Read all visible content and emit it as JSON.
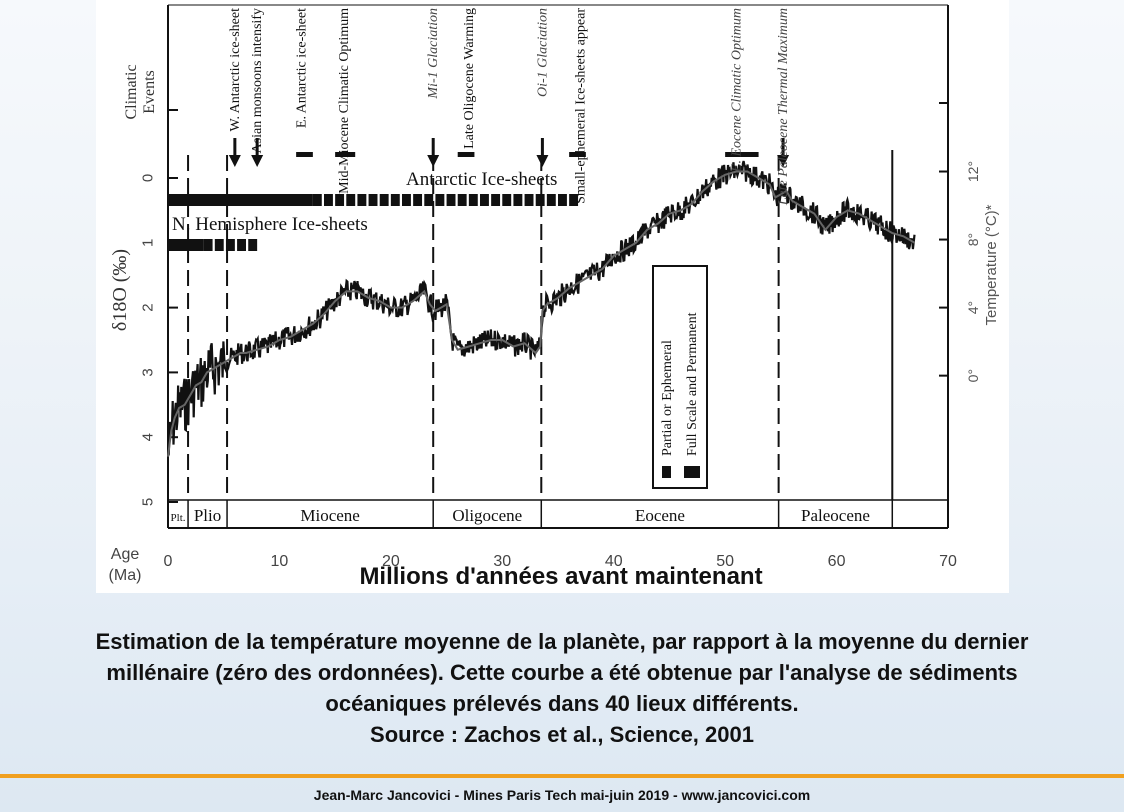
{
  "chart_data": {
    "type": "line",
    "title": "",
    "xlabel": "Millions d'années avant maintenant",
    "xlabel_axis": "Age",
    "xlabel_axis_unit": "(Ma)",
    "ylabel_left": "δ18O (‰)",
    "ylabel_left_super": "18",
    "ylabel_right": "Temperature (°C)*",
    "events_label": [
      "Climatic",
      "Events"
    ],
    "xlim": [
      0,
      70
    ],
    "ylim": [
      5,
      -1
    ],
    "x_ticks": [
      "0",
      "10",
      "20",
      "30",
      "40",
      "50",
      "60",
      "70"
    ],
    "y_ticks": [
      "0",
      "1",
      "2",
      "3",
      "4",
      "5"
    ],
    "y_tick_values": [
      0,
      1,
      2,
      3,
      4,
      5
    ],
    "right_ticks": [
      {
        "label": "12°",
        "d18o": -0.1
      },
      {
        "label": "8°",
        "d18o": 0.95
      },
      {
        "label": "4°",
        "d18o": 2.0
      },
      {
        "label": "0°",
        "d18o": 3.05
      }
    ],
    "series": [
      {
        "x": [
          0,
          0.3,
          0.6,
          1,
          1.5,
          2,
          2.5,
          3,
          3.5,
          4,
          4.5,
          5,
          5.5,
          6,
          6.5,
          7,
          8,
          9,
          10,
          11,
          12,
          13,
          14,
          15,
          16,
          17,
          18,
          19,
          20,
          21,
          22,
          23,
          23.5,
          24,
          24.5,
          25,
          25.5,
          26,
          27,
          28,
          29,
          30,
          31,
          32,
          33,
          33.4,
          33.6,
          34,
          35,
          36,
          37,
          38,
          39,
          40,
          41,
          42,
          43,
          44,
          45,
          46,
          47,
          48,
          49,
          50,
          51,
          52,
          53,
          54,
          54.5,
          55,
          55.5,
          56,
          57,
          58,
          59,
          60,
          61,
          62,
          63,
          64,
          65,
          66,
          67
        ],
        "values": [
          4.3,
          3.9,
          3.7,
          3.55,
          3.5,
          3.35,
          3.2,
          3.15,
          3.0,
          2.95,
          2.9,
          2.85,
          2.8,
          2.75,
          2.7,
          2.7,
          2.65,
          2.6,
          2.5,
          2.45,
          2.35,
          2.25,
          2.1,
          1.9,
          1.75,
          1.75,
          1.85,
          1.9,
          2.0,
          2.0,
          1.9,
          1.75,
          1.95,
          2.05,
          2.0,
          1.95,
          2.5,
          2.65,
          2.6,
          2.55,
          2.5,
          2.5,
          2.6,
          2.55,
          2.7,
          2.6,
          2.05,
          1.95,
          1.85,
          1.7,
          1.6,
          1.5,
          1.4,
          1.2,
          1.1,
          1.0,
          0.8,
          0.7,
          0.55,
          0.5,
          0.4,
          0.2,
          0.05,
          -0.05,
          -0.1,
          -0.1,
          0.0,
          0.1,
          0.3,
          0.25,
          0.2,
          0.35,
          0.45,
          0.55,
          0.8,
          0.6,
          0.5,
          0.55,
          0.65,
          0.75,
          0.85,
          0.9,
          1.0
        ]
      }
    ],
    "vlines_dashed": [
      1.8,
      5.3,
      23.8,
      33.5,
      54.8
    ],
    "vlines_solid": [
      65
    ],
    "epochs": [
      {
        "name": "Plt.",
        "start": 0,
        "end": 1.8
      },
      {
        "name": "Plio",
        "start": 1.8,
        "end": 5.3
      },
      {
        "name": "Miocene",
        "start": 5.3,
        "end": 23.8
      },
      {
        "name": "Oligocene",
        "start": 23.8,
        "end": 33.5
      },
      {
        "name": "Eocene",
        "start": 33.5,
        "end": 54.8
      },
      {
        "name": "Paleocene",
        "start": 54.8,
        "end": 65
      }
    ],
    "ice_sheets": [
      {
        "name": "Antarctic Ice-sheets",
        "segments": [
          {
            "start": 0,
            "end": 13,
            "type": "full"
          },
          {
            "start": 13,
            "end": 37,
            "type": "partial"
          }
        ]
      },
      {
        "name": "N. Hemisphere Ice-sheets",
        "segments": [
          {
            "start": 0,
            "end": 3.2,
            "type": "full"
          },
          {
            "start": 3.2,
            "end": 8,
            "type": "partial"
          }
        ]
      }
    ],
    "events": [
      {
        "label": "W. Antarctic ice-sheet",
        "x": 6,
        "arrow": true
      },
      {
        "label": "Asian monsoons intensify",
        "x": 8,
        "arrow": true
      },
      {
        "label": "E. Antarctic ice-sheet",
        "x": 12,
        "bar": [
          11.5,
          13
        ]
      },
      {
        "label": "Mid-Miocene Climatic Optimum",
        "x": 15.8,
        "bar": [
          15,
          16.8
        ]
      },
      {
        "label": "Mi-1 Glaciation",
        "x": 23.8,
        "arrow": true,
        "italic": true
      },
      {
        "label": "Late Oligocene Warming",
        "x": 27,
        "bar": [
          26,
          27.5
        ]
      },
      {
        "label": "Oi-1 Glaciation",
        "x": 33.6,
        "arrow": true,
        "italic": true
      },
      {
        "label": "Small-ephemeral Ice-sheets appear",
        "x": 37,
        "bar": [
          36,
          37.5
        ]
      },
      {
        "label": "E. Eocene Climatic Optimum",
        "x": 51,
        "bar": [
          50,
          53
        ],
        "italic": true
      },
      {
        "label": "Late Paleocene Thermal Maximum",
        "x": 55.2,
        "arrow": true,
        "italic": true
      }
    ],
    "legend": {
      "placement": "center-right",
      "entries": [
        "Partial or Ephemeral",
        "Full Scale and Permanent"
      ]
    }
  },
  "caption": {
    "lines": [
      "Estimation de la température moyenne de la planète, par rapport à la moyenne du dernier",
      "millénaire (zéro des ordonnées). Cette courbe a été obtenue par l'analyse de sédiments",
      "océaniques prélevés dans 40 lieux différents.",
      "Source : Zachos et al., Science, 2001"
    ]
  },
  "footer": {
    "text": "Jean-Marc Jancovici - Mines Paris Tech mai-juin 2019 - www.jancovici.com"
  },
  "colors": {
    "accent_line": "#f0a020",
    "data": "#111111",
    "trend": "#666666"
  }
}
